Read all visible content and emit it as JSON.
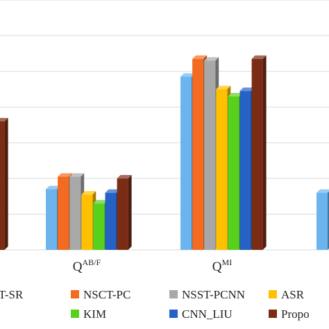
{
  "chart_data": {
    "type": "bar",
    "style": "3d-clustered-column",
    "title": "",
    "xlabel": "",
    "ylabel": "",
    "grid": true,
    "legend_placement": "bottom",
    "ylim": [
      0,
      7
    ],
    "categories": [
      {
        "base": "",
        "sup": ""
      },
      {
        "base": "Q",
        "sup": "AB/F"
      },
      {
        "base": "Q",
        "sup": "MI"
      },
      {
        "base": "",
        "sup": ""
      }
    ],
    "series": [
      {
        "name": "",
        "color": "#6CB4EE",
        "values": [
          3.5,
          1.7,
          4.85,
          1.6
        ]
      },
      {
        "name": "NSCT-PC",
        "color": "#F26B21",
        "values": [
          3.7,
          2.05,
          5.35,
          null
        ]
      },
      {
        "name": "NSST-PCNN",
        "color": "#A8A8A8",
        "values": [
          3.75,
          2.05,
          5.3,
          null
        ]
      },
      {
        "name": "ASR",
        "color": "#FFC000",
        "values": [
          3.9,
          1.55,
          4.5,
          null
        ]
      },
      {
        "name": "KIM",
        "color": "#58D11C",
        "values": [
          4.0,
          1.3,
          4.3,
          null
        ]
      },
      {
        "name": "CNN_LIU",
        "color": "#2462C6",
        "values": [
          3.45,
          1.6,
          4.45,
          null
        ]
      },
      {
        "name": "",
        "color": "#7B2C14",
        "values": [
          3.6,
          2.0,
          5.35,
          null
        ]
      }
    ],
    "legend": [
      {
        "label": "T-SR",
        "color": ""
      },
      {
        "label": "NSCT-PC",
        "color": "#F26B21"
      },
      {
        "label": "NSST-PCNN",
        "color": "#A8A8A8"
      },
      {
        "label": "ASR",
        "color": "#FFC000"
      },
      {
        "label": "KIM",
        "color": "#58D11C"
      },
      {
        "label": "CNN_LIU",
        "color": "#2462C6"
      },
      {
        "label": "Propo",
        "color": "#7B2C14"
      }
    ]
  }
}
